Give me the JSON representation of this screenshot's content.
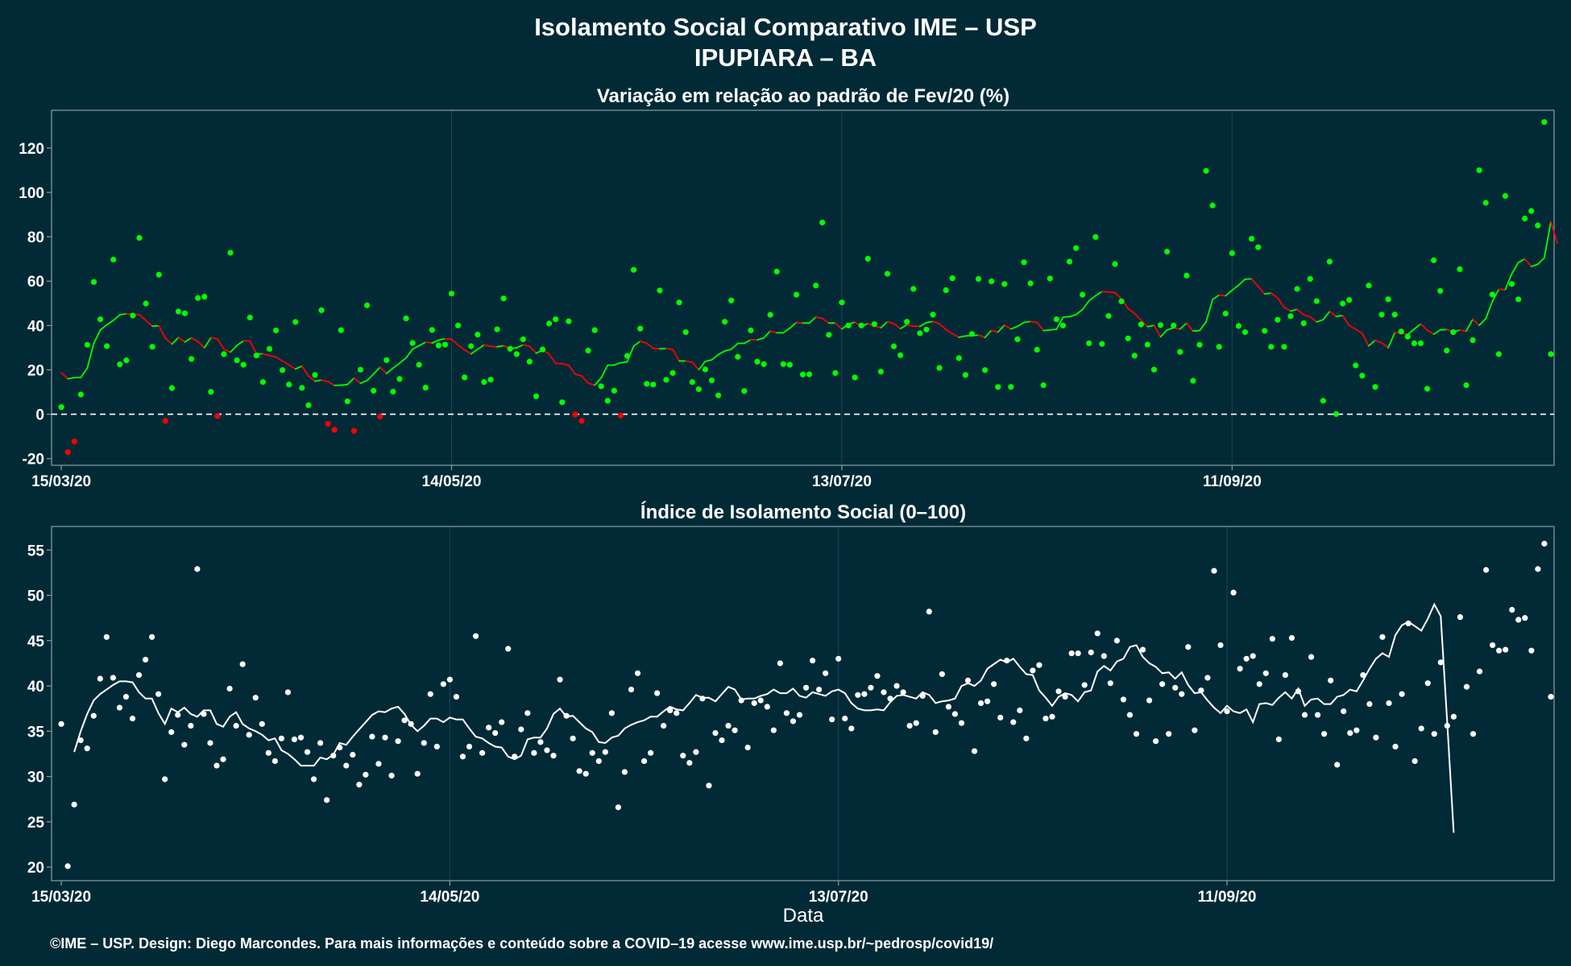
{
  "title_line1": "Isolamento Social Comparativo IME – USP",
  "title_line2": "IPUPIARA – BA",
  "xlabel": "Data",
  "footer": "©IME – USP. Design: Diego Marcondes. Para mais informações e conteúdo sobre a COVID–19 acesse www.ime.usp.br/~pedrosp/covid19/",
  "colors": {
    "background": "#012a36",
    "panel_border": "#8a9ea5",
    "grid": "#1d4552",
    "positive": "#00ff00",
    "negative": "#ff0000",
    "index": "#ffffff"
  },
  "chart_data": [
    {
      "type": "scatter+line",
      "title": "Variação em relação ao padrão de Fev/20 (%)",
      "x_start": "15/03/20",
      "x_tick_labels": [
        "15/03/20",
        "14/05/20",
        "13/07/20",
        "11/09/20"
      ],
      "x_tick_day_offsets": [
        0,
        60,
        120,
        180
      ],
      "ylim": [
        -23,
        137
      ],
      "y_ticks": [
        -20,
        0,
        20,
        40,
        60,
        80,
        100,
        120
      ],
      "reference_line": 0,
      "series": [
        {
          "role": "daily",
          "x_start_offset": 0,
          "values": [
            3.2,
            -17.1,
            -12.3,
            8.9,
            31.3,
            59.6,
            42.8,
            30.7,
            69.7,
            22.5,
            24.3,
            44.5,
            79.5,
            49.9,
            30.4,
            62.9,
            -3.0,
            11.8,
            46.3,
            45.5,
            24.9,
            52.4,
            53.0,
            10.1,
            -0.8,
            27.1,
            72.8,
            24.3,
            22.3,
            43.6,
            26.5,
            14.5,
            29.5,
            37.8,
            19.9,
            13.4,
            41.6,
            11.9,
            4.1,
            17.7,
            46.9,
            -4.3,
            -7.0,
            37.9,
            5.8,
            -7.5,
            20.1,
            49.1,
            10.6,
            -1.0,
            24.4,
            10.2,
            15.9,
            43.2,
            32.1,
            22.3,
            12.0,
            38.0,
            31.0,
            31.4,
            54.4,
            40.0,
            16.6,
            30.7,
            35.9,
            14.5,
            15.6,
            38.3,
            52.2,
            29.5,
            27.1,
            33.8,
            23.7,
            8.1,
            29.2,
            40.9,
            42.8,
            5.4,
            41.9,
            -0.1,
            -3.0,
            28.7,
            37.9,
            12.6,
            6.1,
            10.6,
            -0.6,
            26.3,
            65.1,
            38.6,
            13.7,
            13.4,
            55.8,
            15.5,
            18.6,
            50.4,
            37.0,
            14.5,
            11.3,
            20.2,
            15.3,
            8.5,
            41.7,
            51.3,
            25.9,
            10.5,
            37.8,
            23.7,
            22.6,
            44.8,
            64.3,
            22.6,
            22.3,
            53.9,
            17.9,
            18.0,
            58.0,
            86.4,
            35.8,
            18.6,
            50.4,
            40.0,
            16.6,
            40.0,
            70.1,
            40.6,
            19.2,
            63.3,
            30.6,
            26.6,
            41.7,
            56.5,
            36.5,
            38.2,
            44.9,
            20.9,
            55.9,
            61.3,
            25.3,
            17.7,
            36.2,
            61.0,
            19.9,
            59.9,
            12.3,
            58.7,
            12.3,
            33.8,
            68.5,
            59.0,
            29.1,
            13.1,
            61.2,
            42.8,
            40.0,
            68.8,
            74.9,
            53.9,
            32.0,
            79.9,
            31.7,
            44.3,
            67.7,
            50.9,
            34.2,
            26.4,
            40.5,
            31.4,
            20.1,
            40.2,
            73.3,
            40.0,
            28.1,
            62.5,
            15.1,
            31.3,
            109.7,
            94.1,
            30.4,
            45.4,
            72.6,
            39.8,
            37.0,
            79.1,
            75.3,
            37.6,
            30.4,
            42.6,
            30.4,
            44.2,
            56.5,
            41.0,
            61.0,
            51.0,
            6.1,
            68.8,
            0.1,
            49.9,
            51.5,
            22.0,
            17.4,
            58.0,
            12.3,
            44.9,
            51.8,
            44.9,
            37.3,
            35.0,
            32.0,
            32.0,
            11.5,
            69.4,
            55.6,
            28.7,
            37.0,
            65.4,
            13.1,
            33.4,
            110.0,
            95.3,
            54.0,
            27.1,
            98.4,
            58.7,
            51.8,
            88.2,
            91.6,
            85.1,
            131.7,
            27.1
          ]
        },
        {
          "role": "moving_average",
          "x_start_offset": 0,
          "values": [
            18.8,
            16.0,
            16.5,
            16.6,
            20.8,
            32.0,
            38.0,
            40.3,
            42.3,
            44.8,
            45.3,
            45.0,
            44.9,
            42.3,
            39.7,
            39.8,
            34.3,
            31.6,
            34.6,
            32.6,
            34.4,
            32.8,
            30.0,
            34.5,
            34.0,
            29.4,
            28.0,
            31.0,
            33.1,
            33.0,
            27.2,
            27.2,
            26.5,
            25.8,
            24.0,
            22.2,
            20.4,
            21.7,
            17.2,
            14.9,
            15.4,
            14.7,
            13.0,
            13.1,
            13.4,
            16.3,
            14.0,
            15.2,
            18.1,
            21.2,
            18.4,
            20.8,
            23.0,
            25.4,
            29.3,
            30.9,
            32.5,
            32.1,
            33.4,
            34.0,
            33.9,
            31.2,
            29.0,
            27.2,
            29.3,
            31.3,
            30.6,
            30.4,
            30.9,
            29.7,
            29.9,
            31.3,
            30.6,
            27.5,
            28.9,
            27.1,
            22.9,
            22.8,
            22.1,
            18.0,
            17.3,
            14.0,
            13.1,
            16.4,
            22.1,
            22.2,
            23.2,
            23.6,
            30.7,
            32.9,
            32.0,
            29.7,
            29.5,
            29.6,
            29.2,
            24.0,
            24.0,
            23.4,
            20.1,
            23.8,
            24.5,
            26.9,
            28.5,
            29.3,
            31.9,
            32.0,
            33.6,
            33.5,
            34.4,
            37.5,
            36.7,
            36.7,
            38.8,
            41.4,
            41.1,
            41.1,
            43.8,
            43.2,
            41.1,
            41.1,
            38.4,
            40.6,
            41.5,
            39.6,
            40.9,
            39.7,
            39.0,
            41.7,
            40.8,
            38.6,
            40.3,
            39.7,
            39.6,
            41.3,
            41.8,
            40.8,
            38.2,
            36.3,
            34.7,
            35.3,
            35.4,
            35.7,
            34.6,
            37.8,
            37.0,
            40.2,
            38.4,
            39.6,
            41.4,
            41.8,
            41.4,
            37.7,
            38.0,
            38.3,
            43.7,
            44.0,
            44.9,
            47.2,
            51.1,
            53.4,
            55.3,
            55.1,
            54.8,
            51.9,
            47.6,
            45.5,
            42.4,
            39.5,
            40.1,
            34.9,
            38.0,
            38.9,
            38.4,
            41.1,
            37.5,
            37.7,
            41.6,
            51.7,
            53.8,
            53.4,
            55.9,
            58.2,
            60.9,
            61.0,
            57.6,
            54.2,
            54.6,
            52.4,
            48.2,
            46.5,
            47.3,
            44.8,
            43.9,
            41.6,
            42.6,
            46.4,
            44.1,
            44.5,
            40.0,
            38.3,
            36.5,
            30.8,
            33.3,
            32.2,
            30.0,
            36.8,
            36.6,
            36.0,
            38.4,
            40.7,
            37.9,
            36.1,
            38.0,
            38.2,
            37.2,
            37.9,
            37.5,
            42.8,
            40.1,
            43.1,
            50.8,
            56.3,
            56.2,
            63.3,
            68.4,
            70.0,
            66.6,
            67.6,
            70.5,
            86.7,
            77.2
          ]
        }
      ]
    },
    {
      "type": "scatter+line",
      "title": "Índice de Isolamento Social (0–100)",
      "x_start": "15/03/20",
      "x_tick_labels": [
        "15/03/20",
        "14/05/20",
        "13/07/20",
        "11/09/20"
      ],
      "x_tick_day_offsets": [
        0,
        60,
        120,
        180
      ],
      "ylim": [
        18.5,
        57.6
      ],
      "y_ticks": [
        20,
        25,
        30,
        35,
        40,
        45,
        50,
        55
      ],
      "series": [
        {
          "role": "daily",
          "x_start_offset": 0,
          "values": [
            35.8,
            20.1,
            26.9,
            34.0,
            33.1,
            36.7,
            40.8,
            45.4,
            40.9,
            37.6,
            38.8,
            36.4,
            41.2,
            42.9,
            45.4,
            39.1,
            29.7,
            34.9,
            36.8,
            33.5,
            35.6,
            52.9,
            36.9,
            33.7,
            31.2,
            31.9,
            39.7,
            35.6,
            42.4,
            34.6,
            38.7,
            35.8,
            32.6,
            31.7,
            34.2,
            39.3,
            34.1,
            34.3,
            32.7,
            29.7,
            33.7,
            27.4,
            32.3,
            33.2,
            31.2,
            32.4,
            29.1,
            30.2,
            34.4,
            31.4,
            34.3,
            30.1,
            33.9,
            36.2,
            35.8,
            30.3,
            33.7,
            39.1,
            33.3,
            40.2,
            40.7,
            38.8,
            32.2,
            33.3,
            45.5,
            32.6,
            35.4,
            34.8,
            36.0,
            44.1,
            32.2,
            35.2,
            37.0,
            32.6,
            33.8,
            32.9,
            32.3,
            40.7,
            36.7,
            34.2,
            30.6,
            30.3,
            32.6,
            31.7,
            32.7,
            37.0,
            26.6,
            30.5,
            39.6,
            41.4,
            31.7,
            32.6,
            39.2,
            35.6,
            37.3,
            37.0,
            32.3,
            31.5,
            32.7,
            38.6,
            29.0,
            34.8,
            34.0,
            35.6,
            35.1,
            38.4,
            33.2,
            38.1,
            38.4,
            37.7,
            35.1,
            42.5,
            37.0,
            36.1,
            36.8,
            39.8,
            42.8,
            39.6,
            41.4,
            36.3,
            43.0,
            36.4,
            35.3,
            39.0,
            39.1,
            39.8,
            41.1,
            39.3,
            38.6,
            40.0,
            39.3,
            35.6,
            35.9,
            38.9,
            48.2,
            34.9,
            41.3,
            37.7,
            36.9,
            35.9,
            40.6,
            32.8,
            38.1,
            38.3,
            40.2,
            36.5,
            42.8,
            36.0,
            37.3,
            34.2,
            41.7,
            42.3,
            36.4,
            36.6,
            39.4,
            38.8,
            43.6,
            43.6,
            40.1,
            43.7,
            45.8,
            43.3,
            40.3,
            45.0,
            38.5,
            36.8,
            34.7,
            44.0,
            38.4,
            33.9,
            40.2,
            34.7,
            39.8,
            39.1,
            44.3,
            35.1,
            39.5,
            40.9,
            52.7,
            44.5,
            37.2,
            50.3,
            41.9,
            43.0,
            43.3,
            40.2,
            41.4,
            45.2,
            34.1,
            41.2,
            45.3,
            39.4,
            36.8,
            43.2,
            36.8,
            34.7,
            40.6,
            31.3,
            37.2,
            34.8,
            35.1,
            41.2,
            38.0,
            34.3,
            45.4,
            38.1,
            33.3,
            39.1,
            46.9,
            31.7,
            35.3,
            40.3,
            34.7,
            42.6,
            35.6,
            36.6,
            47.6,
            39.9,
            34.7,
            41.6,
            52.8,
            44.5,
            43.9,
            44.0,
            48.4,
            47.3,
            47.5,
            43.9,
            52.9,
            55.7,
            38.8
          ]
        },
        {
          "role": "moving_average",
          "x_start_offset": 2,
          "values": [
            32.7,
            35.0,
            36.9,
            38.4,
            39.1,
            39.6,
            40.1,
            40.5,
            40.5,
            40.4,
            39.3,
            38.6,
            38.6,
            37.0,
            35.8,
            37.5,
            37.1,
            37.6,
            36.9,
            36.6,
            37.3,
            37.3,
            35.8,
            35.5,
            36.6,
            37.1,
            35.8,
            35.3,
            35.0,
            34.6,
            34.0,
            34.2,
            32.9,
            32.5,
            31.9,
            31.2,
            31.2,
            31.2,
            32.1,
            31.9,
            32.4,
            33.7,
            33.5,
            34.4,
            35.2,
            36.0,
            36.8,
            37.2,
            37.1,
            37.5,
            37.7,
            36.9,
            35.7,
            35.0,
            35.6,
            36.4,
            36.4,
            36.0,
            36.5,
            36.3,
            36.3,
            35.3,
            34.4,
            34.2,
            33.7,
            33.3,
            33.2,
            32.2,
            31.9,
            32.3,
            34.1,
            34.3,
            34.3,
            35.3,
            36.9,
            37.5,
            36.6,
            36.7,
            36.0,
            35.3,
            34.9,
            33.8,
            33.7,
            34.3,
            34.5,
            35.3,
            35.7,
            36.0,
            36.2,
            36.6,
            36.6,
            37.2,
            37.7,
            37.4,
            37.3,
            38.1,
            39.0,
            38.7,
            38.7,
            38.3,
            39.1,
            39.9,
            39.6,
            38.5,
            38.6,
            38.6,
            38.9,
            39.1,
            39.6,
            39.2,
            39.2,
            39.7,
            38.9,
            38.7,
            39.3,
            39.1,
            38.9,
            39.4,
            39.6,
            39.2,
            38.1,
            37.5,
            37.3,
            37.3,
            37.4,
            37.3,
            38.2,
            38.9,
            39.0,
            38.8,
            38.6,
            39.3,
            39.0,
            38.1,
            38.3,
            38.4,
            38.6,
            40.0,
            40.3,
            40.0,
            40.6,
            41.9,
            42.4,
            42.9,
            42.6,
            43.0,
            42.1,
            41.3,
            41.2,
            39.5,
            38.7,
            37.8,
            38.8,
            39.2,
            39.0,
            38.3,
            39.3,
            39.5,
            41.6,
            42.2,
            41.7,
            42.7,
            43.0,
            44.3,
            44.5,
            43.2,
            42.5,
            42.1,
            41.4,
            41.5,
            40.8,
            41.5,
            40.1,
            39.2,
            39.3,
            38.4,
            37.6,
            37.0,
            37.8,
            37.2,
            37.0,
            37.4,
            36.0,
            38.0,
            38.1,
            37.9,
            38.7,
            39.3,
            38.6,
            39.7,
            37.8,
            38.5,
            38.6,
            38.0,
            38.0,
            38.8,
            39.0,
            39.6,
            39.4,
            40.6,
            41.9,
            43.0,
            43.6,
            43.2,
            45.6,
            46.7,
            47.1,
            46.6,
            46.1,
            47.4,
            49.0,
            47.7,
            35.9,
            23.8
          ]
        }
      ]
    }
  ]
}
